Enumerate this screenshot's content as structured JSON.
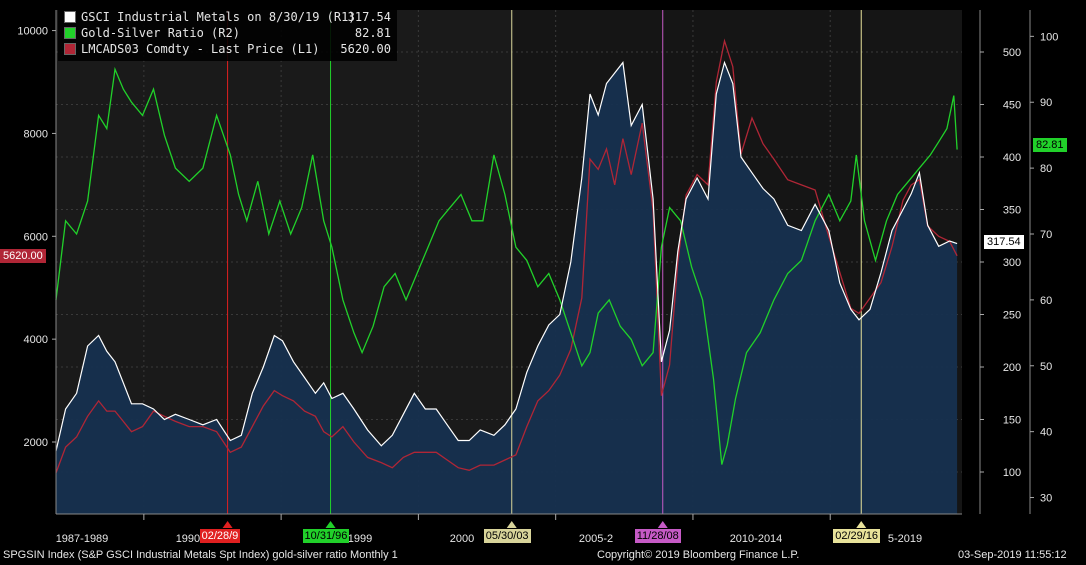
{
  "chart_data": {
    "type": "area",
    "legend": {
      "placement": "top-left",
      "entries": [
        {
          "label": "GSCI Industrial Metals on 8/30/19 (R1)",
          "value": "317.54",
          "color": "#ffffff"
        },
        {
          "label": "Gold-Silver Ratio (R2)",
          "value": "82.81",
          "color": "#21d12a"
        },
        {
          "label": "LMCADS03 Comdty - Last Price (L1)",
          "value": "5620.00",
          "color": "#b02636"
        }
      ]
    },
    "x_labels": [
      "1987-1989",
      "1990-1994",
      "1999",
      "2000",
      "2005-2",
      "2010-2014",
      "5-2019"
    ],
    "event_dates": [
      {
        "label": "02/28/9",
        "color": "#e02020",
        "text_color": "#ffffff"
      },
      {
        "label": "10/31/96",
        "color": "#21d12a",
        "text_color": "#000000"
      },
      {
        "label": "05/30/03",
        "color": "#d8d49a",
        "text_color": "#000000"
      },
      {
        "label": "11/28/08",
        "color": "#c65ac6",
        "text_color": "#000000"
      },
      {
        "label": "02/29/16",
        "color": "#e8e29a",
        "text_color": "#000000"
      }
    ],
    "axes": {
      "left": {
        "ticks": [
          2000,
          4000,
          6000,
          8000,
          10000
        ],
        "ylim": [
          600,
          10400
        ]
      },
      "r1": {
        "ticks": [
          100,
          150,
          200,
          250,
          300,
          350,
          400,
          450,
          500
        ],
        "ylim": [
          60,
          540
        ]
      },
      "r2": {
        "ticks": [
          30,
          40,
          50,
          60,
          70,
          80,
          90,
          100
        ],
        "ylim": [
          27.5,
          104
        ]
      }
    },
    "last_value_flags": {
      "left": "5620.00",
      "r1": "317.54",
      "r2": "82.81"
    },
    "series": [
      {
        "name": "GSCI Industrial Metals on 8/30/19 (R1)",
        "axis": "r1",
        "x_year": [
          1986.85,
          1987.2,
          1987.6,
          1988.0,
          1988.4,
          1988.7,
          1989.0,
          1989.3,
          1989.6,
          1990.0,
          1990.4,
          1990.8,
          1991.2,
          1991.7,
          1992.2,
          1992.7,
          1993.2,
          1993.6,
          1994.0,
          1994.4,
          1994.8,
          1995.1,
          1995.5,
          1995.9,
          1996.3,
          1996.6,
          1996.9,
          1997.3,
          1997.7,
          1998.2,
          1998.7,
          1999.1,
          1999.5,
          1999.9,
          2000.3,
          2000.7,
          2001.1,
          2001.5,
          2001.9,
          2002.3,
          2002.8,
          2003.2,
          2003.6,
          2004.0,
          2004.4,
          2004.8,
          2005.2,
          2005.6,
          2006.0,
          2006.3,
          2006.6,
          2006.9,
          2007.2,
          2007.5,
          2007.8,
          2008.2,
          2008.6,
          2008.9,
          2009.2,
          2009.5,
          2009.8,
          2010.2,
          2010.6,
          2010.9,
          2011.2,
          2011.5,
          2011.8,
          2012.2,
          2012.6,
          2013.0,
          2013.5,
          2014.0,
          2014.5,
          2015.0,
          2015.4,
          2015.8,
          2016.1,
          2016.5,
          2016.9,
          2017.3,
          2017.7,
          2018.0,
          2018.3,
          2018.6,
          2019.0,
          2019.4,
          2019.67
        ],
        "values": [
          120,
          160,
          175,
          220,
          230,
          215,
          205,
          185,
          165,
          165,
          160,
          150,
          155,
          150,
          145,
          150,
          130,
          135,
          175,
          200,
          230,
          225,
          205,
          190,
          175,
          185,
          170,
          175,
          160,
          140,
          125,
          135,
          155,
          175,
          160,
          160,
          145,
          130,
          130,
          140,
          135,
          145,
          160,
          195,
          220,
          240,
          250,
          300,
          380,
          460,
          440,
          470,
          480,
          490,
          430,
          450,
          360,
          205,
          235,
          310,
          360,
          380,
          360,
          460,
          490,
          470,
          400,
          385,
          370,
          360,
          335,
          330,
          355,
          330,
          280,
          255,
          245,
          255,
          290,
          330,
          350,
          365,
          385,
          335,
          315,
          320,
          317.5
        ]
      },
      {
        "name": "Gold-Silver Ratio (R2)",
        "axis": "r2",
        "x_year": [
          1986.85,
          1987.2,
          1987.6,
          1988.0,
          1988.4,
          1988.7,
          1989.0,
          1989.3,
          1989.6,
          1990.0,
          1990.4,
          1990.8,
          1991.2,
          1991.7,
          1992.2,
          1992.7,
          1993.2,
          1993.5,
          1993.8,
          1994.2,
          1994.6,
          1995.0,
          1995.4,
          1995.8,
          1996.2,
          1996.6,
          1996.9,
          1997.3,
          1997.7,
          1998.0,
          1998.4,
          1998.8,
          1999.2,
          1999.6,
          2000.0,
          2000.4,
          2000.8,
          2001.2,
          2001.6,
          2002.0,
          2002.4,
          2002.8,
          2003.2,
          2003.6,
          2004.0,
          2004.4,
          2004.8,
          2005.2,
          2005.6,
          2006.0,
          2006.3,
          2006.6,
          2007.0,
          2007.4,
          2007.8,
          2008.2,
          2008.6,
          2008.9,
          2009.2,
          2009.6,
          2010.0,
          2010.4,
          2010.8,
          2011.1,
          2011.3,
          2011.6,
          2012.0,
          2012.5,
          2013.0,
          2013.5,
          2014.0,
          2014.5,
          2015.0,
          2015.4,
          2015.8,
          2016.0,
          2016.3,
          2016.7,
          2017.1,
          2017.5,
          2017.9,
          2018.3,
          2018.7,
          2019.0,
          2019.3,
          2019.55,
          2019.67
        ],
        "values": [
          60,
          72,
          70,
          75,
          88,
          86,
          95,
          92,
          90,
          88,
          92,
          85,
          80,
          78,
          80,
          88,
          82,
          76,
          72,
          78,
          70,
          75,
          70,
          74,
          82,
          72,
          68,
          60,
          55,
          52,
          56,
          62,
          64,
          60,
          64,
          68,
          72,
          74,
          76,
          72,
          72,
          82,
          76,
          68,
          66,
          62,
          64,
          60,
          55,
          50,
          52,
          58,
          60,
          56,
          54,
          50,
          52,
          68,
          74,
          72,
          65,
          60,
          48,
          35,
          38,
          45,
          52,
          55,
          60,
          64,
          66,
          72,
          76,
          72,
          75,
          82,
          72,
          66,
          72,
          76,
          78,
          80,
          82,
          84,
          86,
          91,
          82.81
        ]
      },
      {
        "name": "LMCADS03 Comdty - Last Price (L1)",
        "axis": "left",
        "x_year": [
          1986.85,
          1987.2,
          1987.6,
          1988.0,
          1988.4,
          1988.7,
          1989.0,
          1989.3,
          1989.6,
          1990.0,
          1990.4,
          1990.8,
          1991.2,
          1991.7,
          1992.2,
          1992.7,
          1993.2,
          1993.6,
          1994.0,
          1994.4,
          1994.8,
          1995.1,
          1995.5,
          1995.9,
          1996.3,
          1996.6,
          1996.9,
          1997.3,
          1997.7,
          1998.2,
          1998.7,
          1999.1,
          1999.5,
          1999.9,
          2000.3,
          2000.7,
          2001.1,
          2001.5,
          2001.9,
          2002.3,
          2002.8,
          2003.2,
          2003.6,
          2004.0,
          2004.4,
          2004.8,
          2005.2,
          2005.6,
          2006.0,
          2006.3,
          2006.6,
          2006.9,
          2007.2,
          2007.5,
          2007.8,
          2008.2,
          2008.6,
          2008.9,
          2009.2,
          2009.5,
          2009.8,
          2010.2,
          2010.6,
          2010.9,
          2011.2,
          2011.5,
          2011.8,
          2012.2,
          2012.6,
          2013.0,
          2013.5,
          2014.0,
          2014.5,
          2015.0,
          2015.4,
          2015.8,
          2016.1,
          2016.5,
          2016.9,
          2017.3,
          2017.7,
          2018.0,
          2018.3,
          2018.6,
          2019.0,
          2019.4,
          2019.67
        ],
        "values": [
          1400,
          1900,
          2100,
          2500,
          2800,
          2600,
          2600,
          2400,
          2200,
          2300,
          2600,
          2500,
          2400,
          2300,
          2300,
          2200,
          1800,
          1900,
          2300,
          2700,
          3000,
          2900,
          2800,
          2600,
          2500,
          2200,
          2100,
          2300,
          2000,
          1700,
          1600,
          1500,
          1700,
          1800,
          1800,
          1800,
          1650,
          1500,
          1450,
          1550,
          1550,
          1650,
          1750,
          2300,
          2800,
          3000,
          3300,
          3800,
          4800,
          7500,
          7300,
          7700,
          7000,
          7900,
          7200,
          8200,
          6500,
          2900,
          3500,
          5500,
          6800,
          7200,
          7000,
          9000,
          9800,
          9300,
          7600,
          8300,
          7800,
          7500,
          7100,
          7000,
          6900,
          6000,
          5300,
          4600,
          4500,
          4800,
          5100,
          5800,
          6700,
          7000,
          7100,
          6200,
          6000,
          5900,
          5620
        ]
      }
    ]
  }
}
